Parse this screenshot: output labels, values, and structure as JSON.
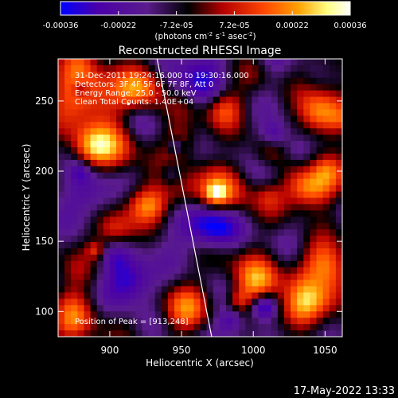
{
  "chart_data": {
    "type": "heatmap",
    "title": "Reconstructed RHESSI Image",
    "xlabel": "Heliocentric X (arcsec)",
    "ylabel": "Heliocentric Y (arcsec)",
    "xlim": [
      864,
      1062
    ],
    "ylim": [
      82,
      280
    ],
    "x_ticks": [
      900,
      950,
      1000,
      1050
    ],
    "y_ticks": [
      100,
      150,
      200,
      250
    ],
    "colorbar": {
      "ticks": [
        "-0.00036",
        "-0.00022",
        "-7.2e-05",
        "7.2e-05",
        "0.00022",
        "0.00036"
      ],
      "unit_label": "(photons cm",
      "unit_label_parts": [
        "(photons cm",
        "-2",
        " s",
        "-1",
        " asec",
        "-2",
        ")"
      ],
      "range": [
        -0.00036,
        0.00036
      ],
      "colormap": [
        "#0000ff",
        "#4b00a8",
        "#5a1c8c",
        "#000000",
        "#b40000",
        "#ff4500",
        "#ffa000",
        "#ffff80",
        "#ffffff"
      ]
    },
    "annotations": [
      "31-Dec-2011 19:24:16.000 to 19:30:16.000",
      "Detectors: 3F 4F 5F 6F 7F 8F, Att 0",
      "Energy Range: 25.0 - 50.0 keV",
      "Clean    Total Counts: 1.40E+04"
    ],
    "peak_label": "Position of Peak = [913,248]",
    "peak": [
      913,
      248
    ],
    "limb_line": [
      [
        933,
        280
      ],
      [
        971,
        82
      ]
    ],
    "footer_date": "17-May-2022 13:33"
  }
}
